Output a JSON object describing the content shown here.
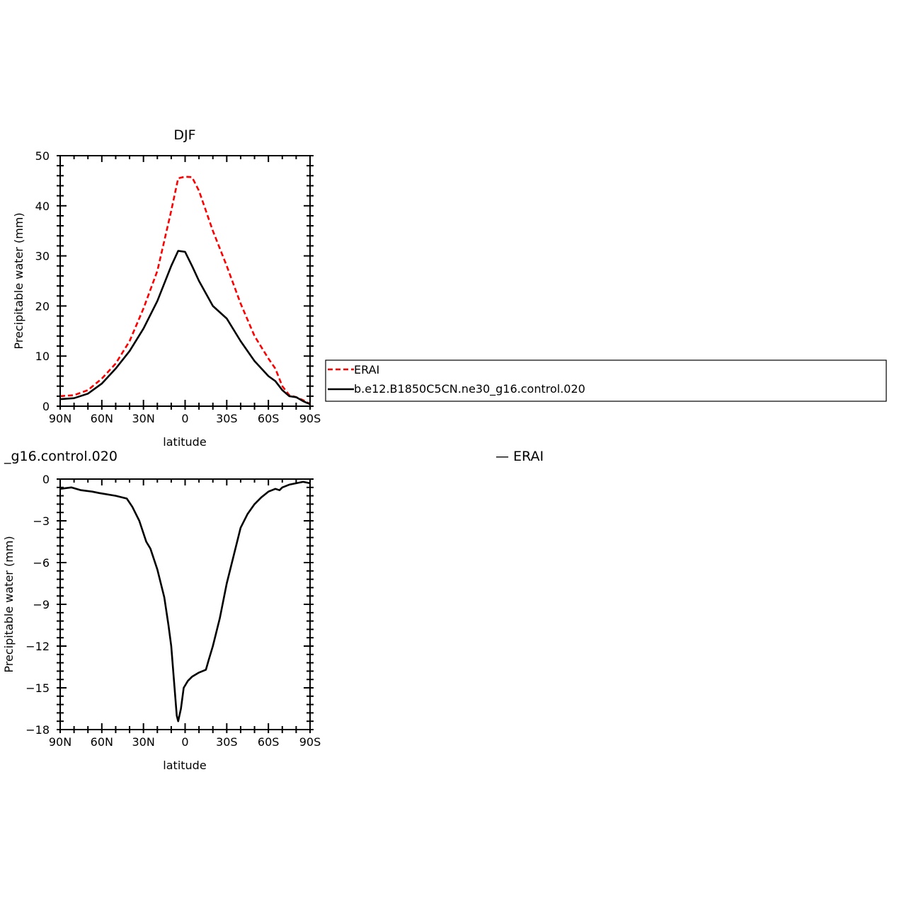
{
  "colors": {
    "erai": "#ff0000",
    "model": "#000000",
    "axis": "#000000",
    "background": "#ffffff"
  },
  "legend": {
    "placement": "right of top panel",
    "entries": [
      {
        "label": "ERAI",
        "color": "#ff0000",
        "style": "dashed"
      },
      {
        "label": "b.e12.B1850C5CN.ne30_g16.control.020",
        "color": "#000000",
        "style": "solid"
      }
    ]
  },
  "chart_data": [
    {
      "type": "line",
      "title": "DJF",
      "xlabel": "latitude",
      "ylabel": "Precipitable water (mm)",
      "xlim": [
        90,
        -90
      ],
      "ylim": [
        0,
        50
      ],
      "x_ticks": [
        90,
        60,
        30,
        0,
        -30,
        -60,
        -90
      ],
      "x_tick_labels": [
        "90N",
        "60N",
        "30N",
        "0",
        "30S",
        "60S",
        "90S"
      ],
      "y_ticks": [
        0,
        10,
        20,
        30,
        40,
        50
      ],
      "y_tick_labels": [
        "0",
        "10",
        "20",
        "30",
        "40",
        "50"
      ],
      "grid": false,
      "x": [
        90,
        80,
        70,
        60,
        50,
        40,
        30,
        20,
        10,
        5,
        0,
        -5,
        -10,
        -20,
        -30,
        -40,
        -50,
        -60,
        -65,
        -70,
        -75,
        -80,
        -85,
        -90
      ],
      "series": [
        {
          "name": "ERAI",
          "color": "#ff0000",
          "style": "dashed",
          "values": [
            2.0,
            2.2,
            3.2,
            5.5,
            8.5,
            13.0,
            19.5,
            27.0,
            39.0,
            45.5,
            45.8,
            45.7,
            43.0,
            35.0,
            28.0,
            20.5,
            14.0,
            9.5,
            7.5,
            4.0,
            2.2,
            1.8,
            1.2,
            0.5
          ]
        },
        {
          "name": "b.e12.B1850C5CN.ne30_g16.control.020",
          "color": "#000000",
          "style": "solid",
          "values": [
            1.4,
            1.6,
            2.5,
            4.5,
            7.5,
            11.0,
            15.5,
            21.0,
            28.0,
            31.0,
            30.8,
            28.0,
            25.0,
            20.0,
            17.5,
            13.0,
            9.0,
            6.0,
            5.0,
            3.2,
            2.0,
            1.8,
            1.0,
            0.4
          ]
        }
      ]
    },
    {
      "type": "line",
      "title": "_g16.control.020",
      "title_right": "— ERAI",
      "xlabel": "latitude",
      "ylabel": "Precipitable water (mm)",
      "xlim": [
        90,
        -90
      ],
      "ylim": [
        -18,
        0
      ],
      "x_ticks": [
        90,
        60,
        30,
        0,
        -30,
        -60,
        -90
      ],
      "x_tick_labels": [
        "90N",
        "60N",
        "30N",
        "0",
        "30S",
        "60S",
        "90S"
      ],
      "y_ticks": [
        0,
        -3,
        -6,
        -9,
        -12,
        -15,
        -18
      ],
      "y_tick_labels": [
        "0",
        "−3",
        "−6",
        "−9",
        "−12",
        "−15",
        "−18"
      ],
      "grid": false,
      "x": [
        90,
        82,
        75,
        67,
        62,
        50,
        42,
        38,
        33,
        28,
        25,
        20,
        15,
        12,
        10,
        8,
        6,
        5,
        3,
        1,
        -2,
        -5,
        -10,
        -15,
        -17,
        -20,
        -25,
        -30,
        -35,
        -40,
        -45,
        -50,
        -55,
        -60,
        -65,
        -68,
        -70,
        -75,
        -80,
        -85,
        -90
      ],
      "series": [
        {
          "name": "",
          "color": "#000000",
          "style": "solid",
          "values": [
            -0.7,
            -0.6,
            -0.8,
            -0.9,
            -1.0,
            -1.2,
            -1.4,
            -2.0,
            -3.0,
            -4.5,
            -5.0,
            -6.5,
            -8.5,
            -10.5,
            -12.0,
            -14.5,
            -17.0,
            -17.4,
            -16.5,
            -15.0,
            -14.5,
            -14.2,
            -13.9,
            -13.7,
            -13.0,
            -12.0,
            -10.0,
            -7.5,
            -5.5,
            -3.5,
            -2.5,
            -1.8,
            -1.3,
            -0.9,
            -0.7,
            -0.8,
            -0.6,
            -0.4,
            -0.3,
            -0.2,
            -0.3
          ]
        }
      ]
    }
  ]
}
